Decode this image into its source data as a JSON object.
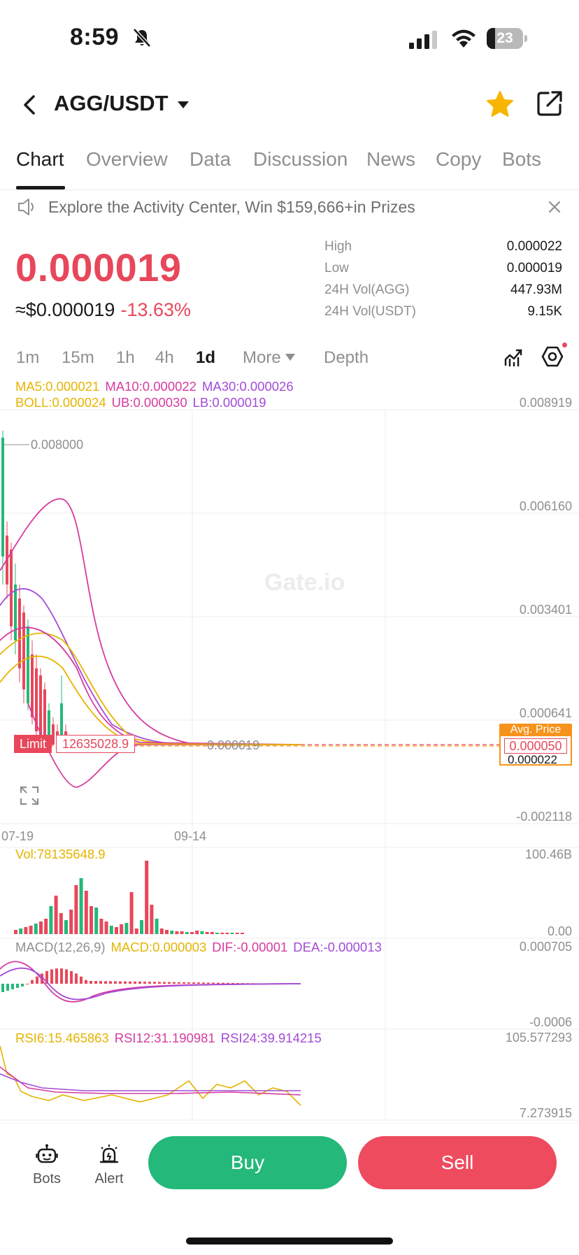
{
  "status": {
    "time": "8:59",
    "battery": "23",
    "battery_level": 0.23
  },
  "header": {
    "pair": "AGG/USDT",
    "favorited": true
  },
  "tabs": [
    {
      "label": "Chart",
      "active": true
    },
    {
      "label": "Overview"
    },
    {
      "label": "Data"
    },
    {
      "label": "Discussion"
    },
    {
      "label": "News"
    },
    {
      "label": "Copy"
    },
    {
      "label": "Bots"
    }
  ],
  "announcement": "Explore the Activity Center, Win $159,666+in Prizes",
  "price": {
    "last": "0.000019",
    "fiat": "≈$0.000019",
    "change": "-13.63%"
  },
  "stats": [
    {
      "label": "High",
      "value": "0.000022"
    },
    {
      "label": "Low",
      "value": "0.000019"
    },
    {
      "label": "24H Vol(AGG)",
      "value": "447.93M"
    },
    {
      "label": "24H Vol(USDT)",
      "value": "9.15K"
    }
  ],
  "intervals": [
    {
      "label": "1m"
    },
    {
      "label": "15m"
    },
    {
      "label": "1h"
    },
    {
      "label": "4h"
    },
    {
      "label": "1d",
      "active": true
    }
  ],
  "more_label": "More",
  "depth_label": "Depth",
  "indicators": {
    "ma5": "MA5:0.000021",
    "ma10": "MA10:0.000022",
    "ma30": "MA30:0.000026",
    "boll": "BOLL:0.000024",
    "ub": "UB:0.000030",
    "lb": "LB:0.000019"
  },
  "chart_data": [
    {
      "type": "candlestick",
      "title": "",
      "y_axis_ticks": [
        "0.008919",
        "0.006160",
        "0.003401",
        "0.000641",
        "-0.002118"
      ],
      "x_axis_ticks": [
        "07-19",
        "09-14"
      ],
      "annotations": {
        "max_price": "0.008000",
        "last_price": "0.000019",
        "limit_label": "Limit",
        "limit_value": "12635028.9",
        "avg_price_label": "Avg. Price",
        "avg_price_value": "0.000050",
        "current_price_tag": "0.000022"
      },
      "watermark": "Gate.io",
      "colors": {
        "up": "#24b87a",
        "down": "#e8475b",
        "ma5": "#e6b400",
        "ma10": "#d63ca0",
        "ma30": "#a34bd6"
      }
    },
    {
      "type": "bar",
      "title": "Vol:78135648.9",
      "y_axis_ticks": [
        "100.46B",
        "0.00"
      ]
    },
    {
      "type": "bar",
      "title": "MACD(12,26,9)",
      "labels": {
        "macd": "MACD:0.000003",
        "dif": "DIF:-0.00001",
        "dea": "DEA:-0.000013"
      },
      "y_axis_ticks": [
        "0.000705",
        "-0.0006"
      ]
    },
    {
      "type": "line",
      "title": "",
      "labels": {
        "rsi6": "RSI6:15.465863",
        "rsi12": "RSI12:31.190981",
        "rsi24": "RSI24:39.914215"
      },
      "y_axis_ticks": [
        "105.577293",
        "7.273915"
      ]
    }
  ],
  "bottom": {
    "bots": "Bots",
    "alert": "Alert",
    "buy": "Buy",
    "sell": "Sell"
  }
}
